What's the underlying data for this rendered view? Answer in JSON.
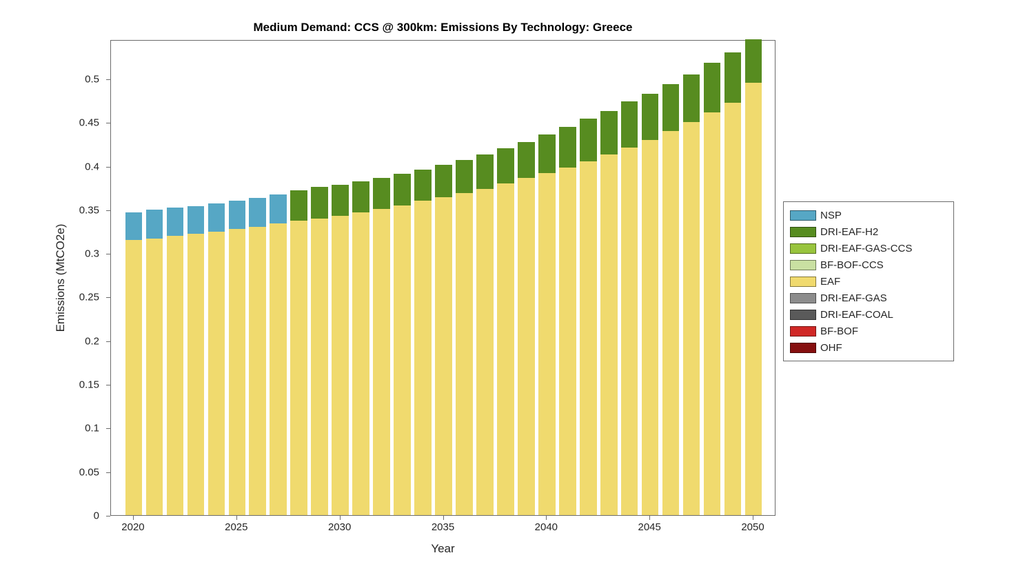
{
  "figure": {
    "title": "Medium Demand: CCS @ 300km: Emissions By Technology: Greece",
    "xlabel": "Year",
    "ylabel": "Emissions (MtCO2e)"
  },
  "chart_data": {
    "type": "bar",
    "stacked": true,
    "title": "Medium Demand: CCS @ 300km: Emissions By Technology: Greece",
    "xlabel": "Year",
    "ylabel": "Emissions (MtCO2e)",
    "grid": false,
    "legend_position": "right-outside",
    "x": [
      2020,
      2021,
      2022,
      2023,
      2024,
      2025,
      2026,
      2027,
      2028,
      2029,
      2030,
      2031,
      2032,
      2033,
      2034,
      2035,
      2036,
      2037,
      2038,
      2039,
      2040,
      2041,
      2042,
      2043,
      2044,
      2045,
      2046,
      2047,
      2048,
      2049,
      2050
    ],
    "xticks": [
      2020,
      2025,
      2030,
      2035,
      2040,
      2045,
      2050
    ],
    "xtick_labels": [
      "2020",
      "2025",
      "2030",
      "2035",
      "2040",
      "2045",
      "2050"
    ],
    "yticks": [
      0,
      0.05,
      0.1,
      0.15,
      0.2,
      0.25,
      0.3,
      0.35,
      0.4,
      0.45,
      0.5
    ],
    "ytick_labels": [
      "0",
      "0.05",
      "0.1",
      "0.15",
      "0.2",
      "0.25",
      "0.3",
      "0.35",
      "0.4",
      "0.45",
      "0.5"
    ],
    "ylim": [
      0,
      0.545
    ],
    "xlim_years": [
      2019.4,
      2050.6
    ],
    "series": [
      {
        "name": "EAF",
        "color": "#F0DA6E",
        "values": [
          0.315,
          0.317,
          0.32,
          0.322,
          0.325,
          0.328,
          0.33,
          0.334,
          0.337,
          0.34,
          0.343,
          0.347,
          0.351,
          0.355,
          0.36,
          0.364,
          0.369,
          0.374,
          0.38,
          0.386,
          0.392,
          0.398,
          0.405,
          0.413,
          0.421,
          0.43,
          0.44,
          0.45,
          0.461,
          0.472,
          0.495
        ]
      },
      {
        "name": "NSP",
        "color": "#56A7C5",
        "values": [
          0.032,
          0.033,
          0.032,
          0.032,
          0.032,
          0.032,
          0.033,
          0.033,
          0,
          0,
          0,
          0,
          0,
          0,
          0,
          0,
          0,
          0,
          0,
          0,
          0,
          0,
          0,
          0,
          0,
          0,
          0,
          0,
          0,
          0,
          0
        ]
      },
      {
        "name": "DRI-EAF-H2",
        "color": "#578C20",
        "values": [
          0,
          0,
          0,
          0,
          0,
          0,
          0,
          0,
          0.035,
          0.036,
          0.035,
          0.035,
          0.035,
          0.036,
          0.036,
          0.037,
          0.038,
          0.039,
          0.04,
          0.041,
          0.044,
          0.047,
          0.049,
          0.05,
          0.053,
          0.053,
          0.054,
          0.055,
          0.057,
          0.058,
          0.05
        ]
      }
    ],
    "legend": [
      {
        "label": "NSP",
        "color": "#56A7C5"
      },
      {
        "label": "DRI-EAF-H2",
        "color": "#578C20"
      },
      {
        "label": "DRI-EAF-GAS-CCS",
        "color": "#98C43D"
      },
      {
        "label": "BF-BOF-CCS",
        "color": "#C9E0A2"
      },
      {
        "label": "EAF",
        "color": "#F0DA6E"
      },
      {
        "label": "DRI-EAF-GAS",
        "color": "#8C8C8C"
      },
      {
        "label": "DRI-EAF-COAL",
        "color": "#5A5A5A"
      },
      {
        "label": "BF-BOF",
        "color": "#D02826"
      },
      {
        "label": "OHF",
        "color": "#850F0F"
      }
    ]
  }
}
